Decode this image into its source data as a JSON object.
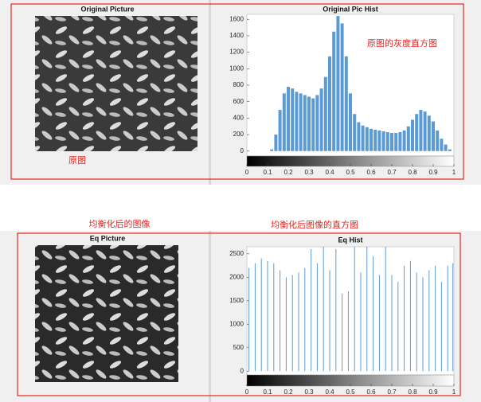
{
  "chart_data": [
    {
      "type": "bar",
      "title": "Original Pic Hist",
      "image_title": "Original Picture",
      "image_caption": "原图",
      "annotation": "原图的灰度直方图",
      "color": "#5b9bd5",
      "x": [
        0,
        0.02,
        0.04,
        0.06,
        0.08,
        0.1,
        0.12,
        0.14,
        0.16,
        0.18,
        0.2,
        0.22,
        0.24,
        0.26,
        0.28,
        0.3,
        0.32,
        0.34,
        0.36,
        0.38,
        0.4,
        0.42,
        0.44,
        0.46,
        0.48,
        0.5,
        0.52,
        0.54,
        0.56,
        0.58,
        0.6,
        0.62,
        0.64,
        0.66,
        0.68,
        0.7,
        0.72,
        0.74,
        0.76,
        0.78,
        0.8,
        0.82,
        0.84,
        0.86,
        0.88,
        0.9,
        0.92,
        0.94,
        0.96,
        0.98,
        1
      ],
      "values": [
        0,
        0,
        0,
        0,
        0,
        0,
        20,
        200,
        500,
        700,
        780,
        760,
        720,
        700,
        680,
        660,
        640,
        680,
        760,
        900,
        1150,
        1450,
        1640,
        1550,
        1150,
        700,
        450,
        350,
        310,
        290,
        270,
        260,
        250,
        240,
        230,
        220,
        220,
        230,
        250,
        300,
        380,
        450,
        500,
        480,
        430,
        360,
        250,
        150,
        80,
        20,
        0
      ],
      "xlim": [
        0,
        1
      ],
      "xticks": [
        0,
        0.1,
        0.2,
        0.3,
        0.4,
        0.5,
        0.6,
        0.7,
        0.8,
        0.9,
        1
      ],
      "ylim": [
        -60,
        1660
      ],
      "yticks": [
        0,
        200,
        400,
        600,
        800,
        1000,
        1200,
        1400,
        1600
      ]
    },
    {
      "type": "stem",
      "title": "Eq Hist",
      "image_title": "Eq Picture",
      "image_caption": "均衡化后的图像",
      "annotation": "均衡化后图像的直方图",
      "color": "#5b9bd5",
      "x": [
        0.01,
        0.04,
        0.07,
        0.1,
        0.13,
        0.16,
        0.19,
        0.22,
        0.25,
        0.28,
        0.31,
        0.34,
        0.37,
        0.4,
        0.43,
        0.46,
        0.49,
        0.52,
        0.55,
        0.58,
        0.61,
        0.64,
        0.67,
        0.7,
        0.73,
        0.76,
        0.79,
        0.82,
        0.85,
        0.88,
        0.91,
        0.94,
        0.97,
        0.995
      ],
      "values": [
        2200,
        2300,
        2400,
        2350,
        2300,
        2150,
        2000,
        2050,
        2100,
        2200,
        2600,
        2300,
        2650,
        2150,
        2600,
        1650,
        1700,
        2650,
        2100,
        2650,
        2450,
        2050,
        2650,
        2050,
        1900,
        2250,
        2350,
        2100,
        2000,
        2150,
        2250,
        1900,
        2250,
        2300
      ],
      "xlim": [
        0,
        1
      ],
      "xticks": [
        0,
        0.1,
        0.2,
        0.3,
        0.4,
        0.5,
        0.6,
        0.7,
        0.8,
        0.9,
        1
      ],
      "ylim": [
        -80,
        2650
      ],
      "yticks": [
        0,
        500,
        1000,
        1500,
        2000,
        2500
      ]
    }
  ]
}
